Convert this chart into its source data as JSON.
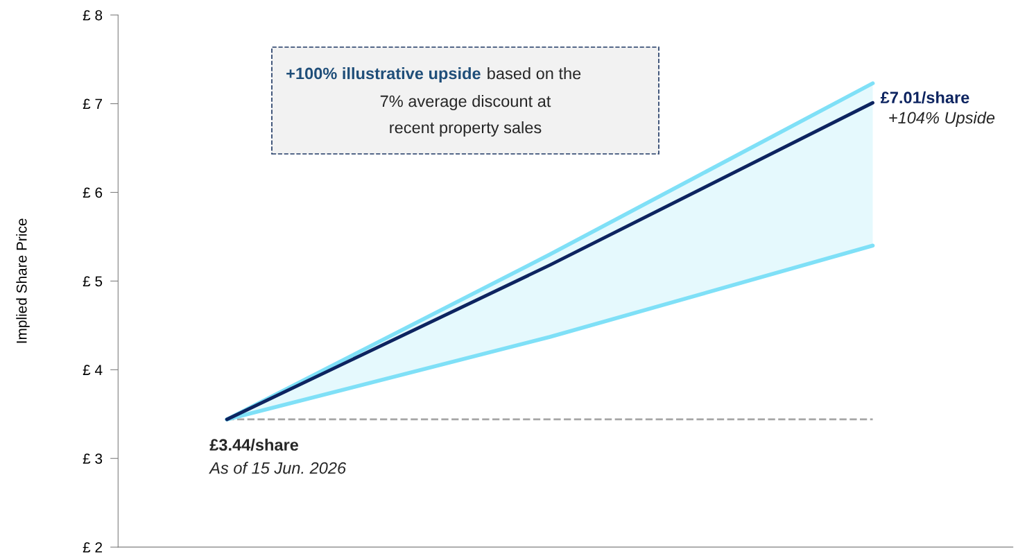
{
  "chart_data": {
    "type": "line",
    "ylabel": "Implied Share Price",
    "categories": [
      null,
      null,
      null
    ],
    "series": [
      {
        "color": "#7fe0f7",
        "values": [
          3.44,
          5.3,
          7.23
        ]
      },
      {
        "color": "#7fe0f7",
        "values": [
          3.44,
          4.37,
          5.4
        ]
      },
      {
        "color": "#0d2460",
        "values": [
          3.44,
          5.18,
          7.01
        ],
        "lower": [
          3.44,
          4.37,
          5.4
        ],
        "upper": [
          3.44,
          5.3,
          7.23
        ]
      }
    ],
    "ylim": [
      2,
      8
    ],
    "yticks": [
      {
        "value": 2,
        "label": "£ 2"
      },
      {
        "value": 3,
        "label": "£ 3"
      },
      {
        "value": 4,
        "label": "£ 4"
      },
      {
        "value": 5,
        "label": "£ 5"
      },
      {
        "value": 6,
        "label": "£ 6"
      },
      {
        "value": 7,
        "label": "£ 7"
      },
      {
        "value": 8,
        "label": "£ 8"
      }
    ],
    "ref_lines": [
      {
        "axis": "y",
        "value": 3.44,
        "color": "#a6a6a6",
        "line_style": "dashed"
      }
    ],
    "annotations": [
      "£3.44/share",
      "As of 15 Jun. 2026",
      "£7.01/share",
      "+104% Upside",
      "+100% illustrative upside",
      "based on the 7% average discount at recent property sales"
    ],
    "tick_labels": "y",
    "grid": false,
    "legend": false,
    "marker": "none",
    "line_style": "solid"
  }
}
